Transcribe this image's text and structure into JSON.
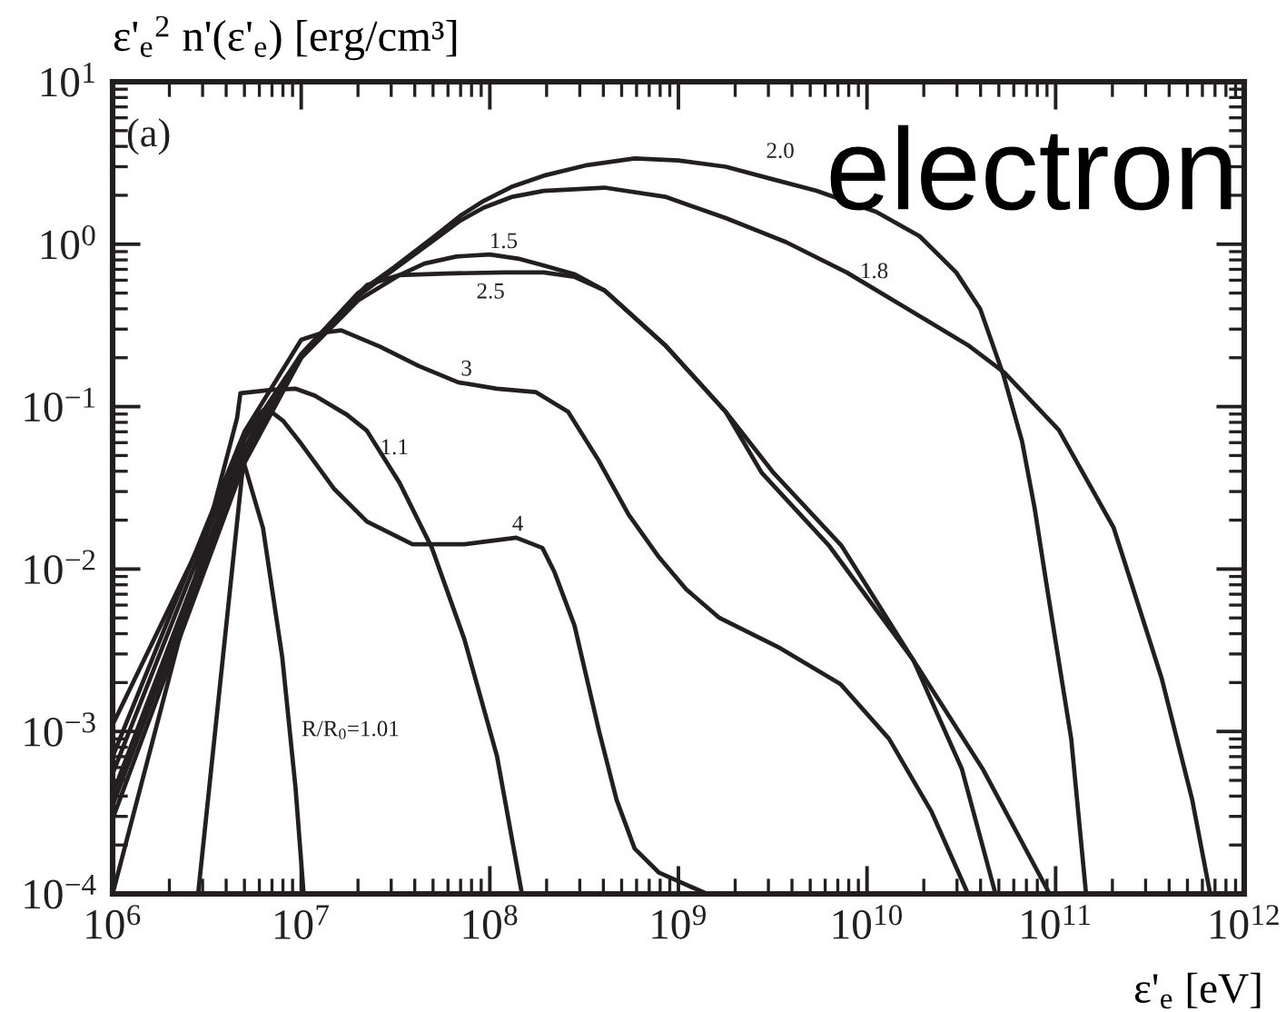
{
  "chart_data": {
    "type": "line",
    "title": "electron",
    "xlabel": "ε'$_{e}$ [eV]",
    "ylabel": "ε'$_{e}$$^{2}$ n'(ε'$_{e}$) [erg/cm³]",
    "annotations": [
      "(a)"
    ],
    "log": "xy",
    "xlim": [
      1000000.0,
      1000000000000.0
    ],
    "ylim": [
      0.0001,
      10
    ],
    "xticks": [
      {
        "value": 1000000.0,
        "label": "10$^{6}$"
      },
      {
        "value": 10000000.0,
        "label": "10$^{7}$"
      },
      {
        "value": 100000000.0,
        "label": "10$^{8}$"
      },
      {
        "value": 1000000000.0,
        "label": "10$^{9}$"
      },
      {
        "value": 10000000000.0,
        "label": "10$^{10}$"
      },
      {
        "value": 100000000000.0,
        "label": "10$^{11}$"
      },
      {
        "value": 1000000000000.0,
        "label": "10$^{12}$"
      }
    ],
    "yticks": [
      {
        "value": 0.0001,
        "label": "10$^{−4}$"
      },
      {
        "value": 0.001,
        "label": "10$^{−3}$"
      },
      {
        "value": 0.01,
        "label": "10$^{−2}$"
      },
      {
        "value": 0.1,
        "label": "10$^{−1}$"
      },
      {
        "value": 1,
        "label": "10$^{0}$"
      },
      {
        "value": 10,
        "label": "10$^{1}$"
      }
    ],
    "series": [
      {
        "name": "R/R$_{0}$=1.01",
        "color": "#231f20",
        "x": [
          2840000.0,
          4940000.0,
          6270000.0,
          7940000.0,
          9330000.0,
          10300000.0
        ],
        "values": [
          0.0001,
          0.046,
          0.0179,
          0.00284,
          0.00045,
          0.0001
        ]
      },
      {
        "name": "1.1",
        "color": "#231f20",
        "x": [
          1000000.0,
          4570000.0,
          4760000.0,
          6970000.0,
          9300000.0,
          11800000.0,
          17500000.0,
          22300000.0,
          33200000.0,
          49300000.0,
          73300000.0,
          109000000.0,
          148000000.0
        ],
        "values": [
          0.0001,
          0.085,
          0.121,
          0.127,
          0.129,
          0.117,
          0.089,
          0.071,
          0.034,
          0.0135,
          0.0037,
          0.00071,
          0.0001
        ]
      },
      {
        "name": "1.5",
        "color": "#231f20",
        "x": [
          1000000.0,
          5000000.0,
          10000000.0,
          20000000.0,
          33200000.0,
          45000000.0,
          66500000.0,
          100000000.0,
          145000000.0,
          193000000.0,
          280000000.0,
          405000000.0,
          850000000.0,
          1780000000.0,
          3200000000.0,
          7300000000.0,
          17600000000.0,
          31800000000.0,
          48000000000.0
        ],
        "values": [
          0.00029,
          0.045,
          0.2,
          0.45,
          0.645,
          0.76,
          0.84,
          0.865,
          0.81,
          0.74,
          0.655,
          0.52,
          0.239,
          0.093,
          0.039,
          0.014,
          0.00275,
          0.00059,
          0.0001
        ]
      },
      {
        "name": "1.8",
        "color": "#231f20",
        "x": [
          1000000.0,
          5000000.0,
          10000000.0,
          20000000.0,
          31000000.0,
          50000000.0,
          70000000.0,
          93000000.0,
          130000000.0,
          193000000.0,
          405000000.0,
          850000000.0,
          1780000000.0,
          3720000000.0,
          7800000000.0,
          16400000000.0,
          34300000000.0,
          53500000000.0,
          104000000000.0,
          203000000000.0,
          280000000000.0,
          366000000000.0,
          530000000000.0,
          660000000000.0
        ],
        "values": [
          0.00035,
          0.05,
          0.2,
          0.48,
          0.7,
          1.05,
          1.4,
          1.68,
          1.95,
          2.13,
          2.23,
          1.96,
          1.45,
          1.03,
          0.67,
          0.4,
          0.239,
          0.162,
          0.0718,
          0.018,
          0.0056,
          0.0021,
          0.00038,
          0.0001
        ]
      },
      {
        "name": "2.0",
        "color": "#231f20",
        "x": [
          1000000.0,
          5000000.0,
          10000000.0,
          20000000.0,
          31000000.0,
          50000000.0,
          70000000.0,
          93000000.0,
          130000000.0,
          193000000.0,
          320000000.0,
          586000000.0,
          1000000000.0,
          1780000000.0,
          3200000000.0,
          5400000000.0,
          11200000000.0,
          19000000000.0,
          29700000000.0,
          39800000000.0,
          53000000000.0,
          66400000000.0,
          77500000000.0,
          90000000000.0,
          121000000000.0,
          145000000000.0
        ],
        "values": [
          0.00041,
          0.056,
          0.21,
          0.5,
          0.72,
          1.1,
          1.5,
          1.85,
          2.25,
          2.64,
          3.05,
          3.37,
          3.28,
          3.0,
          2.5,
          2.13,
          1.58,
          1.12,
          0.67,
          0.4,
          0.155,
          0.061,
          0.0235,
          0.0077,
          0.0009,
          0.0001
        ]
      },
      {
        "name": "2.5",
        "color": "#231f20",
        "x": [
          1000000.0,
          5000000.0,
          10000000.0,
          22300000.0,
          33200000.0,
          58000000.0,
          120000000.0,
          193000000.0,
          280000000.0,
          405000000.0,
          850000000.0,
          1780000000.0,
          2770000000.0,
          6270000000.0,
          17600000000.0,
          41000000000.0,
          93000000000.0
        ],
        "values": [
          0.00055,
          0.063,
          0.21,
          0.56,
          0.645,
          0.66,
          0.67,
          0.67,
          0.63,
          0.52,
          0.239,
          0.093,
          0.039,
          0.014,
          0.00275,
          0.00059,
          0.0001
        ]
      },
      {
        "name": "3",
        "color": "#231f20",
        "x": [
          1000000.0,
          5000000.0,
          10000000.0,
          13000000.0,
          16300000.0,
          26200000.0,
          42000000.0,
          68000000.0,
          109000000.0,
          175000000.0,
          260000000.0,
          376000000.0,
          545000000.0,
          790000000.0,
          1100000000.0,
          1650000000.0,
          3460000000.0,
          7260000000.0,
          13100000000.0,
          22000000000.0,
          34300000000.0
        ],
        "values": [
          0.0007,
          0.07,
          0.258,
          0.285,
          0.295,
          0.234,
          0.178,
          0.141,
          0.129,
          0.123,
          0.093,
          0.047,
          0.0216,
          0.0118,
          0.0075,
          0.005,
          0.00326,
          0.00195,
          0.0009,
          0.00032,
          0.0001
        ]
      },
      {
        "name": "4",
        "color": "#231f20",
        "x": [
          1000000.0,
          3160000.0,
          4800000.0,
          5600000.0,
          6530000.0,
          8000000.0,
          10000000.0,
          15000000.0,
          22300000.0,
          38900000.0,
          73300000.0,
          138000000.0,
          190000000.0,
          220000000.0,
          281000000.0,
          380000000.0,
          470000000.0,
          586000000.0,
          790000000.0,
          1420000000.0
        ],
        "values": [
          0.0011,
          0.0174,
          0.06,
          0.085,
          0.098,
          0.082,
          0.059,
          0.031,
          0.0196,
          0.0142,
          0.0142,
          0.0156,
          0.0135,
          0.0096,
          0.0045,
          0.001,
          0.00038,
          0.00019,
          0.000135,
          0.0001
        ]
      }
    ]
  }
}
